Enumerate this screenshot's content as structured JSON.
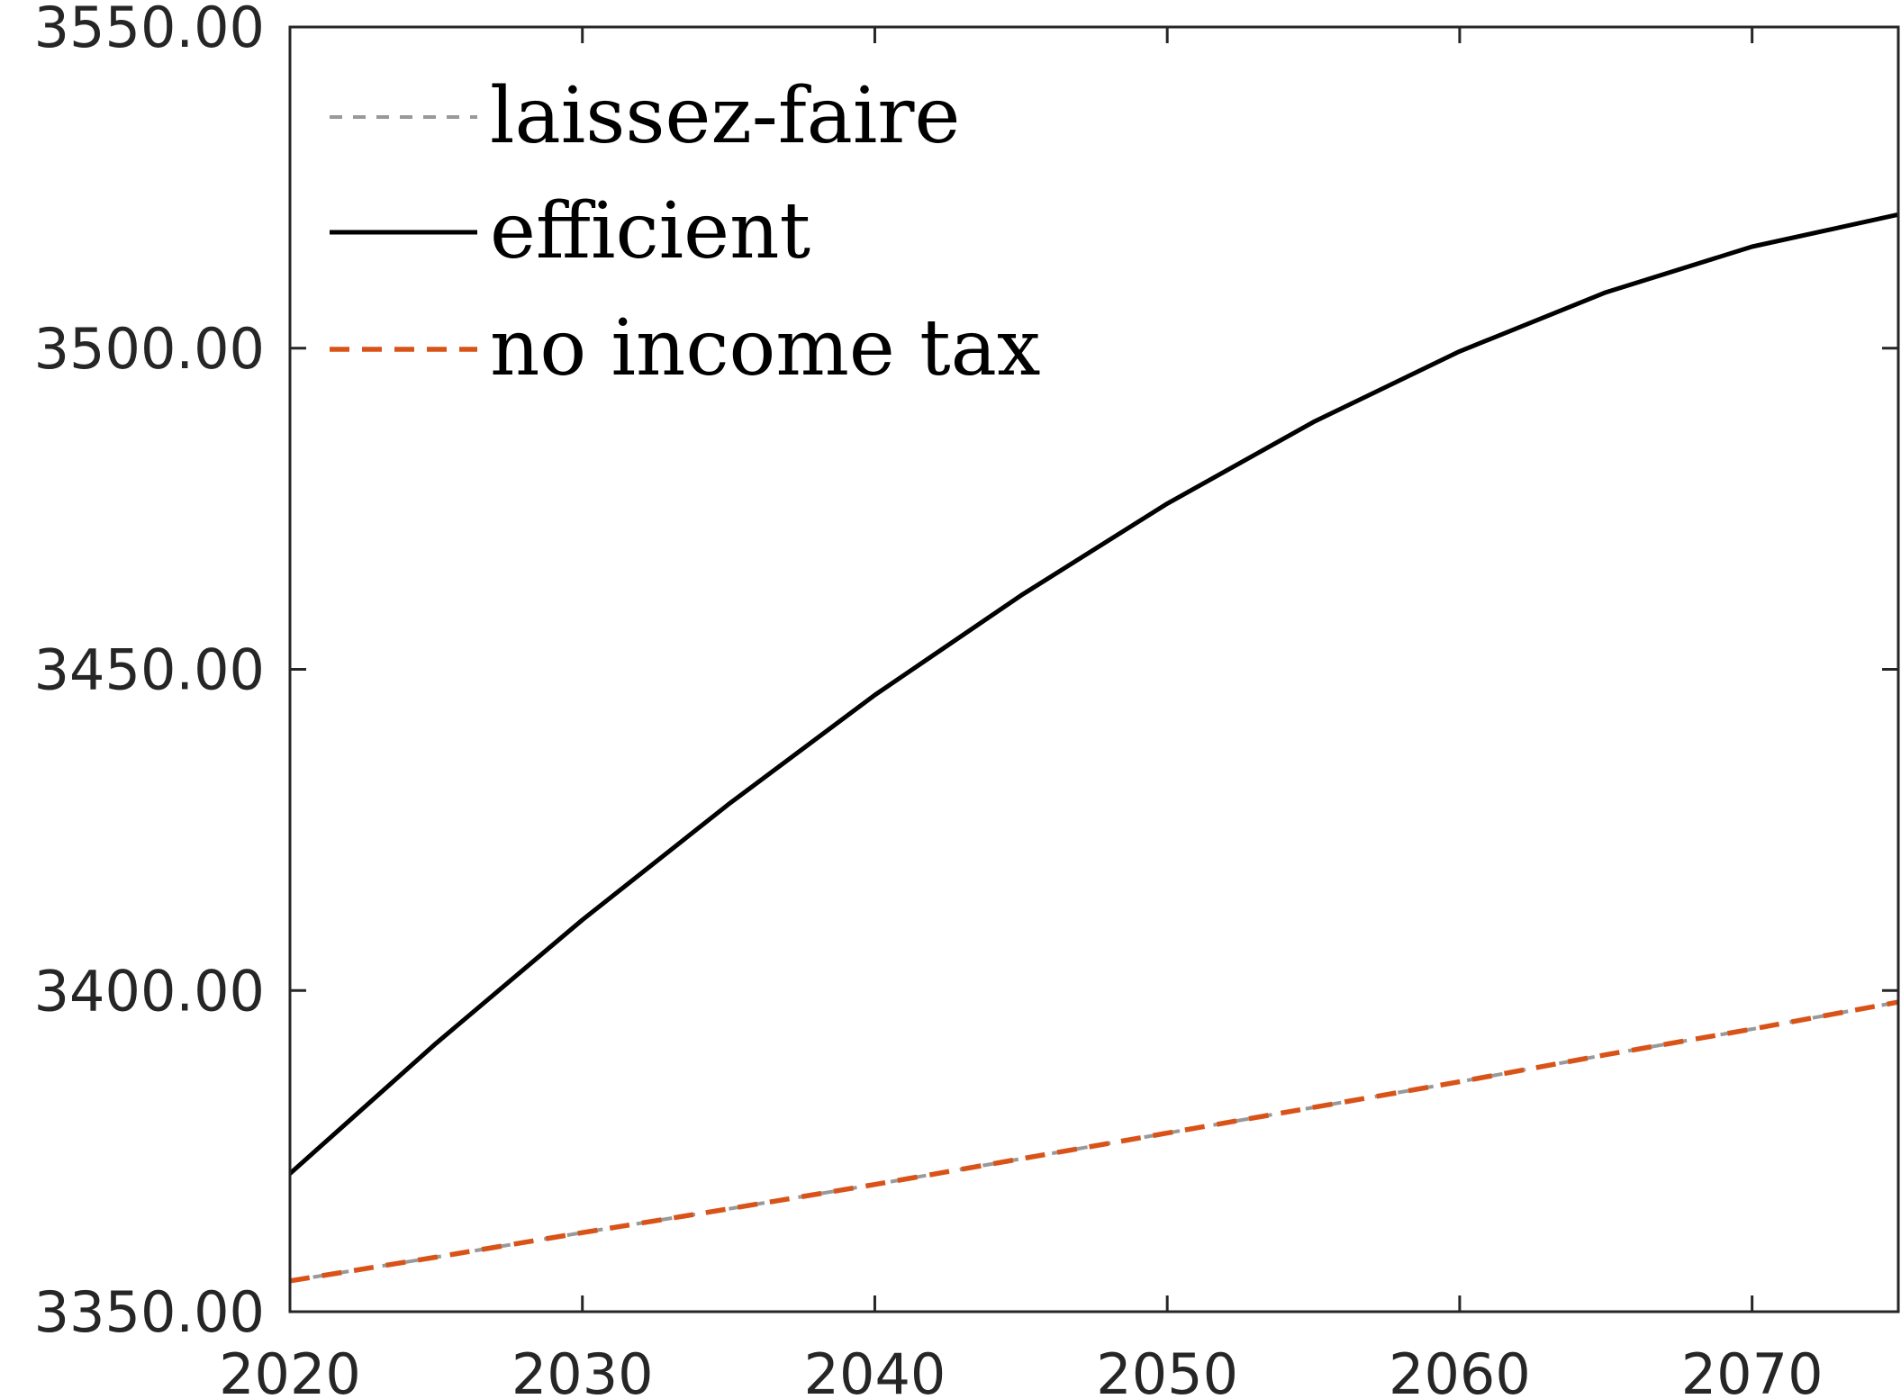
{
  "chart_data": {
    "type": "line",
    "title": "",
    "xlabel": "",
    "ylabel": "",
    "xlim": [
      2020,
      2075
    ],
    "ylim": [
      3350,
      3550
    ],
    "xticks": [
      2020,
      2030,
      2040,
      2050,
      2060,
      2070
    ],
    "yticks": [
      3350,
      3400,
      3450,
      3500,
      3550
    ],
    "xtick_labels": [
      "2020",
      "2030",
      "2040",
      "2050",
      "2060",
      "2070"
    ],
    "ytick_labels": [
      "3350.00",
      "3400.00",
      "3450.00",
      "3500.00",
      "3550.00"
    ],
    "grid": false,
    "legend_position": "top-left",
    "series": [
      {
        "name": "laissez-faire",
        "color": "#999999",
        "style": "dashed",
        "x": [
          2020,
          2025,
          2030,
          2035,
          2040,
          2045,
          2050,
          2055,
          2060,
          2065,
          2070,
          2075
        ],
        "y": [
          3354.8,
          3358.5,
          3362.3,
          3366.0,
          3369.8,
          3373.8,
          3377.8,
          3381.8,
          3385.8,
          3390.0,
          3394.0,
          3398.2
        ]
      },
      {
        "name": "efficient",
        "color": "#000000",
        "style": "solid",
        "x": [
          2020,
          2025,
          2030,
          2035,
          2040,
          2045,
          2050,
          2055,
          2060,
          2065,
          2070,
          2075
        ],
        "y": [
          3371.5,
          3391.8,
          3411.0,
          3429.0,
          3446.0,
          3461.5,
          3475.8,
          3488.5,
          3499.5,
          3508.7,
          3515.8,
          3520.8
        ]
      },
      {
        "name": "no income tax",
        "color": "#d95319",
        "style": "dashed",
        "x": [
          2020,
          2025,
          2030,
          2035,
          2040,
          2045,
          2050,
          2055,
          2060,
          2065,
          2070,
          2075
        ],
        "y": [
          3354.8,
          3358.5,
          3362.3,
          3366.0,
          3369.8,
          3373.8,
          3377.8,
          3381.8,
          3385.8,
          3390.0,
          3394.0,
          3398.2
        ]
      }
    ]
  }
}
